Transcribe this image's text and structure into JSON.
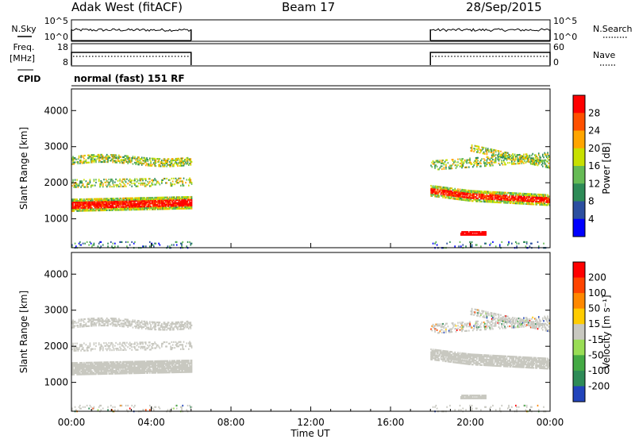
{
  "header": {
    "station": "Adak West (fitACF)",
    "beam": "Beam 17",
    "date": "28/Sep/2015"
  },
  "sky_panel": {
    "left_label": "N.Sky",
    "right_label": "N.Search",
    "left_ticks": [
      "10^5",
      "10^0"
    ],
    "right_ticks": [
      "10^5",
      "10^0"
    ]
  },
  "freq_panel": {
    "left_label_line1": "Freq.",
    "left_label_line2": "[MHz]",
    "right_label": "Nave",
    "left_ticks": [
      "18",
      "8"
    ],
    "right_ticks": [
      "60",
      "0"
    ],
    "cpid_label": "CPID",
    "mode_text": "normal (fast) 151 RF"
  },
  "time_axis": {
    "label": "Time UT",
    "tick_labels": [
      "00:00",
      "04:00",
      "08:00",
      "12:00",
      "16:00",
      "20:00",
      "00:00"
    ]
  },
  "chart_data": [
    {
      "type": "heatmap",
      "name": "power",
      "ylabel": "Slant Range [km]",
      "yticks": [
        "1000",
        "2000",
        "3000",
        "4000"
      ],
      "ylim": [
        200,
        4600
      ],
      "xlim_hours": [
        0,
        24
      ],
      "colorbar_label": "Power [dB]",
      "colorbar_ticks": [
        "4",
        "8",
        "12",
        "16",
        "20",
        "24",
        "28"
      ],
      "colorbar_colors": [
        "#0000ff",
        "#2c4fa0",
        "#2e8b57",
        "#66bb55",
        "#c8e000",
        "#ffa500",
        "#ff5000",
        "#ff0000"
      ],
      "data_segments_hours": [
        [
          0,
          6
        ],
        [
          18,
          24
        ]
      ]
    },
    {
      "type": "heatmap",
      "name": "velocity",
      "ylabel": "Slant Range [km]",
      "yticks": [
        "1000",
        "2000",
        "3000",
        "4000"
      ],
      "ylim": [
        200,
        4600
      ],
      "xlim_hours": [
        0,
        24
      ],
      "colorbar_label": "Velocity [m s⁻¹]",
      "colorbar_ticks": [
        "200",
        "100",
        "50",
        "15",
        "-15",
        "-50",
        "-100",
        "-200"
      ],
      "colorbar_colors": [
        "#2244bb",
        "#2e8b57",
        "#44aa44",
        "#99dd55",
        "#c8c8c0",
        "#ffcc00",
        "#ff8800",
        "#ff4400",
        "#ff0000"
      ],
      "ground_scatter_color": "#c8c8c0"
    }
  ]
}
